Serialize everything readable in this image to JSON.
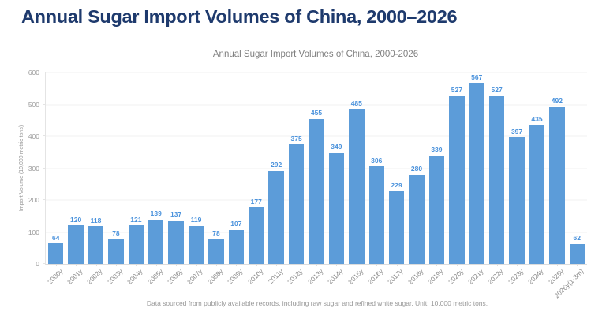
{
  "page": {
    "heading": "Annual Sugar Import Volumes of China, 2000–2026"
  },
  "colors": {
    "heading": "#1e3a6d",
    "bar": "#5c9cd9",
    "value_label": "#4a92dc",
    "axis_text": "#999999",
    "x_label_text": "#8a8a8a",
    "grid": "#f0f0f0",
    "chart_title_text": "#7f7f7f"
  },
  "chart_data": {
    "type": "bar",
    "title": "Annual Sugar Import Volumes of China, 2000-2026",
    "xlabel": "",
    "ylabel": "Import Volume (10,000 metric tons)",
    "ylim": [
      0,
      600
    ],
    "ytick_step": 100,
    "grid": true,
    "legend": "none",
    "categories": [
      "2000y",
      "2001y",
      "2002y",
      "2003y",
      "2004y",
      "2005y",
      "2006y",
      "2007y",
      "2008y",
      "2009y",
      "2010y",
      "2011y",
      "2012y",
      "2013y",
      "2014y",
      "2015y",
      "2016y",
      "2017y",
      "2018y",
      "2019y",
      "2020y",
      "2021y",
      "2022y",
      "2023y",
      "2024y",
      "2025y",
      "2026y(1-3m)"
    ],
    "values": [
      64,
      120,
      118,
      78,
      121,
      139,
      137,
      119,
      78,
      107,
      177,
      292,
      375,
      455,
      349,
      485,
      306,
      229,
      280,
      339,
      527,
      567,
      527,
      397,
      435,
      492,
      62
    ],
    "value_labels_shown": true,
    "footnote": "Data sourced from publicly available records, including raw sugar and refined white sugar. Unit: 10,000 metric tons."
  }
}
